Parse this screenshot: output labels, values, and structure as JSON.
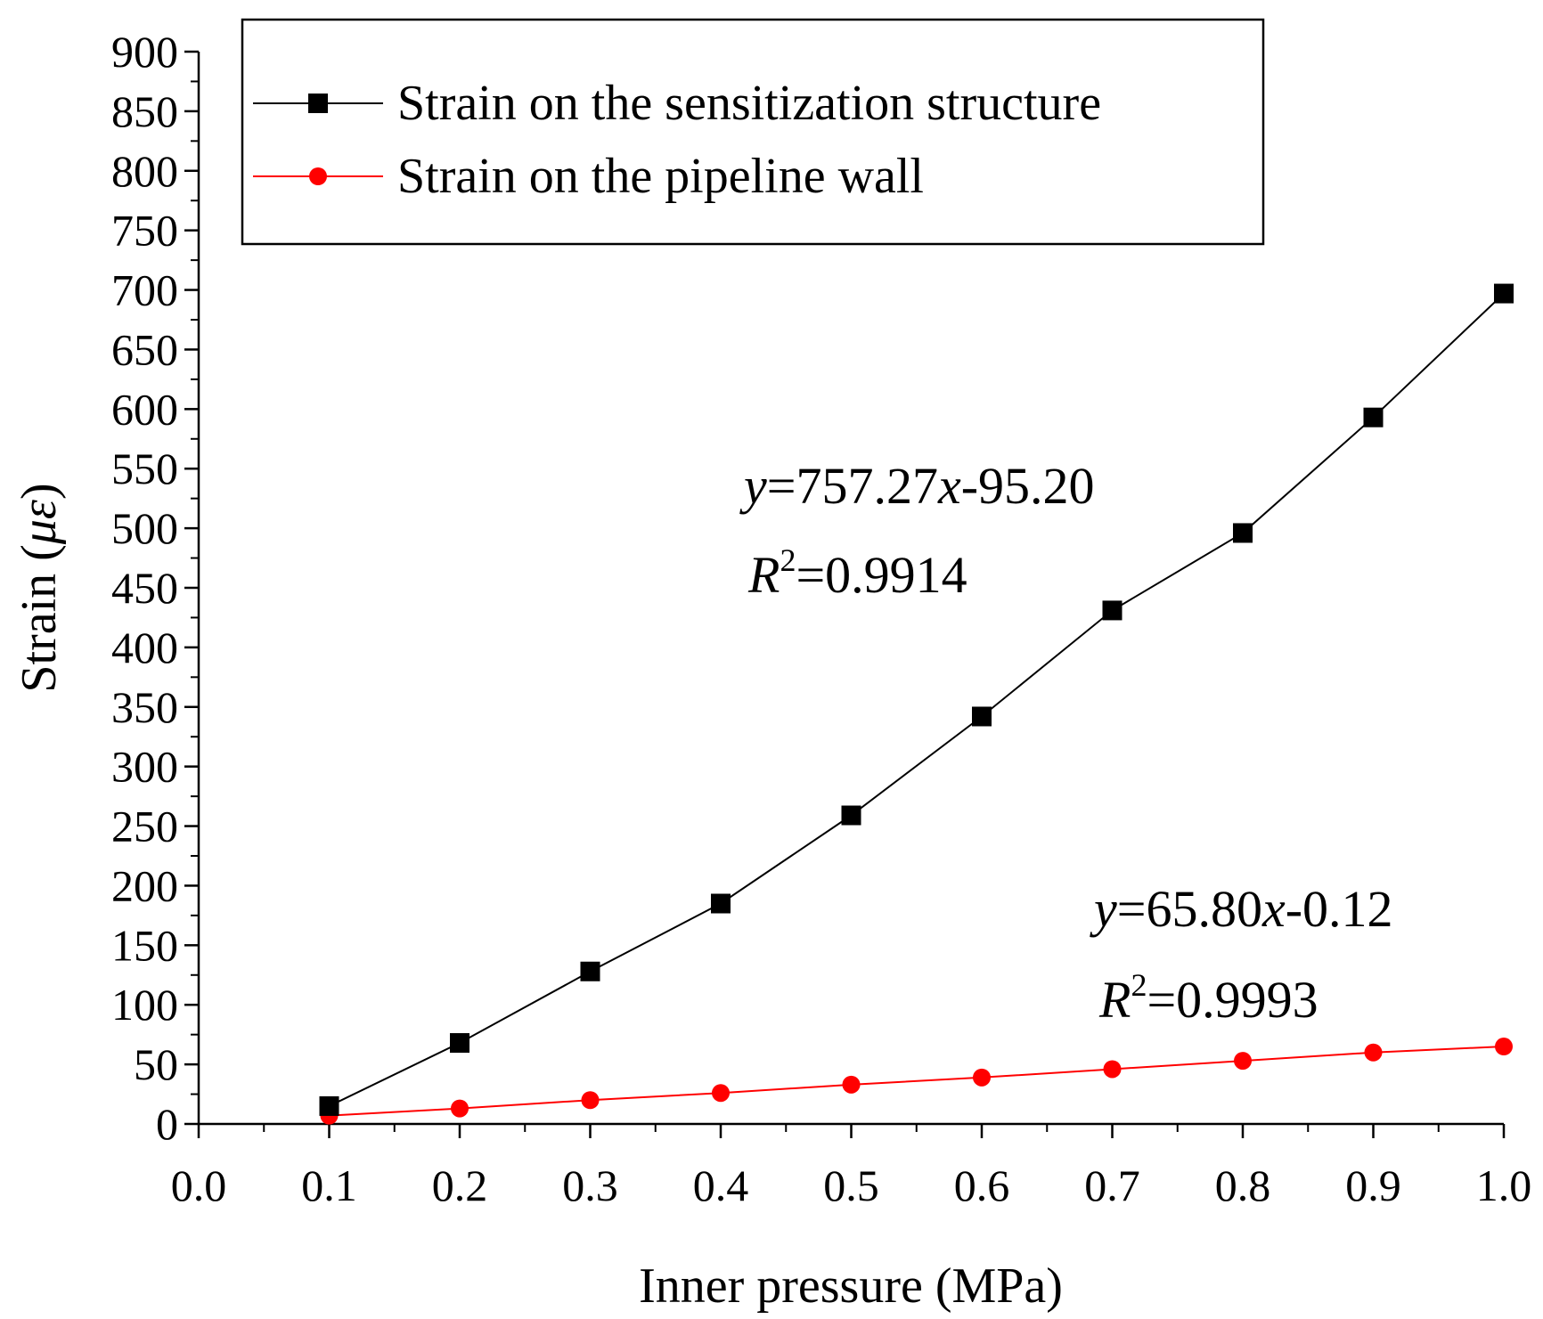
{
  "chart_data": {
    "type": "line",
    "title": "",
    "xlabel": "Inner pressure (MPa)",
    "ylabel_main": "Strain (",
    "ylabel_mu": "μ",
    "ylabel_eps": "ε",
    "ylabel_close": ")",
    "xlim": [
      0.0,
      1.0
    ],
    "ylim": [
      0,
      900
    ],
    "xticks": [
      0.0,
      0.1,
      0.2,
      0.3,
      0.4,
      0.5,
      0.6,
      0.7,
      0.8,
      0.9,
      1.0
    ],
    "xtick_labels": [
      "0.0",
      "0.1",
      "0.2",
      "0.3",
      "0.4",
      "0.5",
      "0.6",
      "0.7",
      "0.8",
      "0.9",
      "1.0"
    ],
    "yticks": [
      0,
      50,
      100,
      150,
      200,
      250,
      300,
      350,
      400,
      450,
      500,
      550,
      600,
      650,
      700,
      750,
      800,
      850,
      900
    ],
    "ytick_labels": [
      "0",
      "50",
      "100",
      "150",
      "200",
      "250",
      "300",
      "350",
      "400",
      "450",
      "500",
      "550",
      "600",
      "650",
      "700",
      "750",
      "800",
      "850",
      "900"
    ],
    "grid": false,
    "legend_position": "top-left",
    "series": [
      {
        "name": "Strain on the sensitization structure",
        "color": "#000000",
        "marker": "square",
        "x": [
          0.1,
          0.2,
          0.3,
          0.4,
          0.5,
          0.6,
          0.7,
          0.8,
          0.9,
          1.0
        ],
        "values": [
          15,
          68,
          128,
          185,
          259,
          342,
          431,
          496,
          593,
          697
        ]
      },
      {
        "name": "Strain on the pipeline wall",
        "color": "#ff0000",
        "marker": "circle",
        "x": [
          0.1,
          0.2,
          0.3,
          0.4,
          0.5,
          0.6,
          0.7,
          0.8,
          0.9,
          1.0
        ],
        "values": [
          7,
          13,
          20,
          26,
          33,
          39,
          46,
          53,
          60,
          65
        ]
      }
    ],
    "annotations": [
      {
        "eq_y": "y",
        "eq_rest": "=757.27",
        "eq_x": "x",
        "eq_tail": "-95.20",
        "r_letter": "R",
        "r_sup": "2",
        "r_value": "=0.9914"
      },
      {
        "eq_y": "y",
        "eq_rest": "=65.80",
        "eq_x": "x",
        "eq_tail": "-0.12",
        "r_letter": "R",
        "r_sup": "2",
        "r_value": "=0.9993"
      }
    ]
  }
}
